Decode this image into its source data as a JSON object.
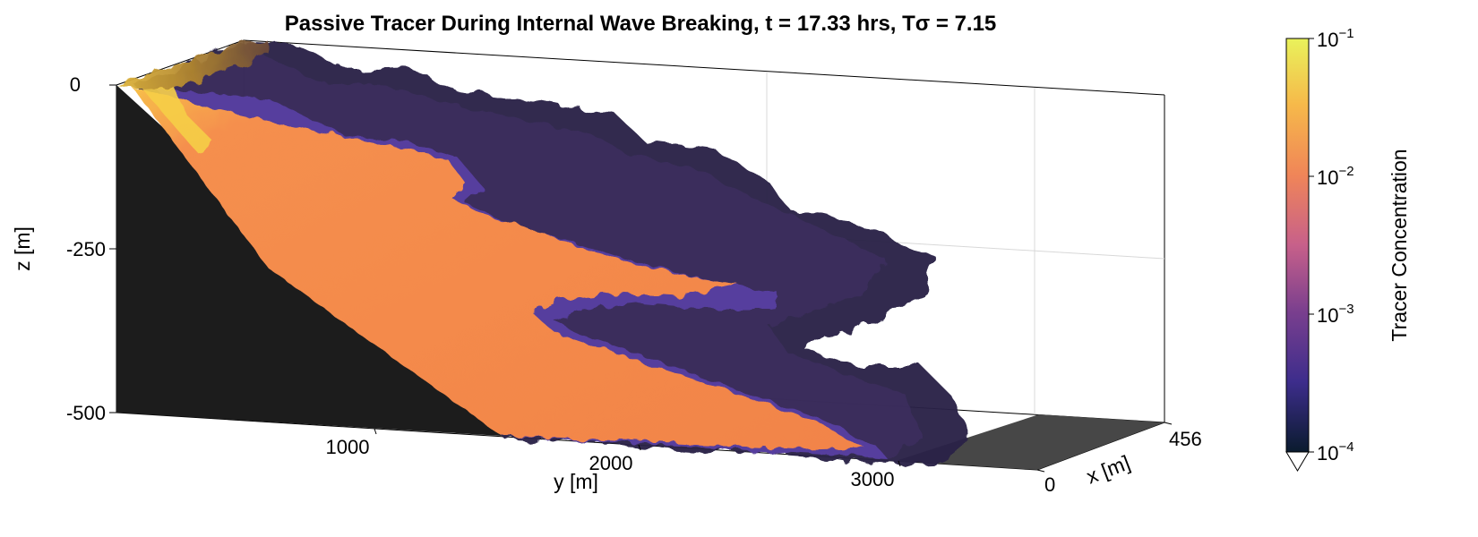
{
  "title": "Passive Tracer During Internal Wave Breaking, t = 17.33 hrs, Tσ = 7.15",
  "chart_data": {
    "type": "volume3d",
    "title": "Passive Tracer During Internal Wave Breaking, t = 17.33 hrs, Tσ = 7.15",
    "xlabel": "x [m]",
    "ylabel": "y [m]",
    "zlabel": "z [m]",
    "x_ticks": [
      {
        "value": 0,
        "label": "0"
      },
      {
        "value": 456,
        "label": "456"
      }
    ],
    "y_ticks": [
      {
        "value": 1000,
        "label": "1000"
      },
      {
        "value": 2000,
        "label": "2000"
      },
      {
        "value": 3000,
        "label": "3000"
      }
    ],
    "z_ticks": [
      {
        "value": 0,
        "label": "0"
      },
      {
        "value": -250,
        "label": "-250"
      },
      {
        "value": -500,
        "label": "-500"
      }
    ],
    "xlim": [
      0,
      456
    ],
    "ylim": [
      0,
      3600
    ],
    "zlim": [
      -500,
      0
    ],
    "grid": true,
    "colorbar": {
      "label": "Tracer Concentration",
      "scale": "log",
      "range": [
        0.0001,
        0.1
      ],
      "ticks": [
        {
          "value": 0.1,
          "base": "10",
          "exp": "−1"
        },
        {
          "value": 0.01,
          "base": "10",
          "exp": "−2"
        },
        {
          "value": 0.001,
          "base": "10",
          "exp": "−3"
        },
        {
          "value": 0.0001,
          "base": "10",
          "exp": "−4"
        }
      ],
      "colormap": [
        "#0a1b2e",
        "#3d2d8c",
        "#7a3f8e",
        "#c7608a",
        "#f08558",
        "#f6b94a",
        "#e9f25b"
      ],
      "extend": "min"
    },
    "colors": {
      "topography": "#1a1a1a",
      "floor_plane": "#474747"
    }
  }
}
